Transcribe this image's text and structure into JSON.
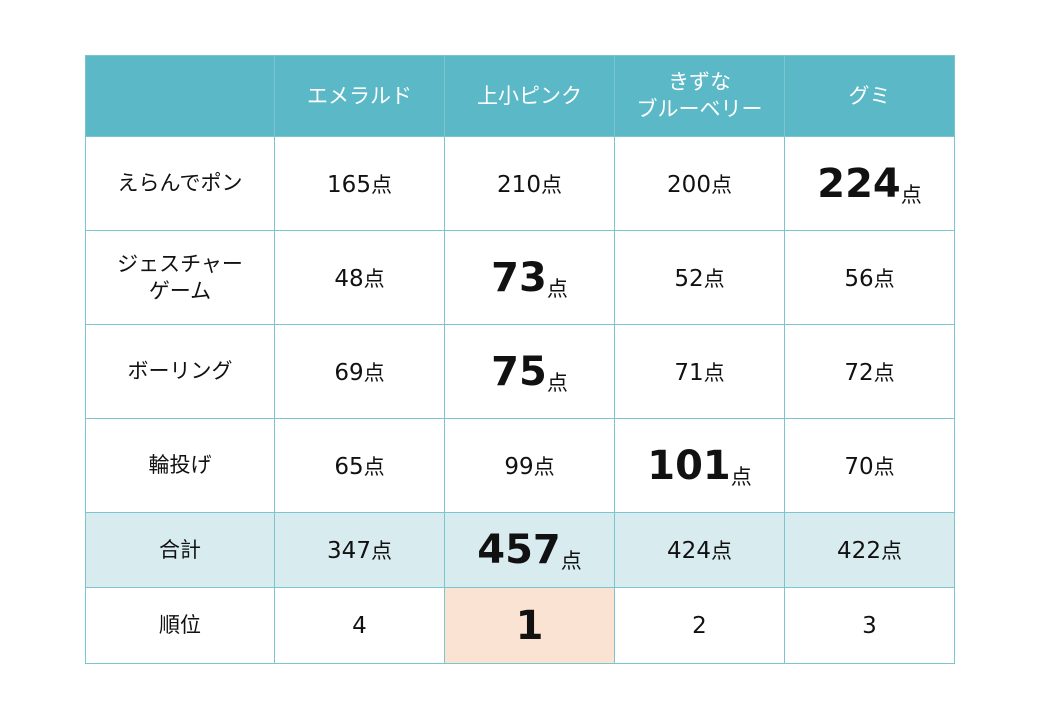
{
  "header": {
    "corner": "",
    "teams": [
      "エメラルド",
      "上小ピンク",
      "きずな\nブルーベリー",
      "グミ"
    ]
  },
  "unit": "点",
  "rows": [
    {
      "label": "えらんでポン",
      "values": [
        "165",
        "210",
        "200",
        "224"
      ],
      "highlight_index": 3
    },
    {
      "label": "ジェスチャー\nゲーム",
      "values": [
        "48",
        "73",
        "52",
        "56"
      ],
      "highlight_index": 1
    },
    {
      "label": "ボーリング",
      "values": [
        "69",
        "75",
        "71",
        "72"
      ],
      "highlight_index": 1
    },
    {
      "label": "輪投げ",
      "values": [
        "65",
        "99",
        "101",
        "70"
      ],
      "highlight_index": 2
    }
  ],
  "total": {
    "label": "合計",
    "values": [
      "347",
      "457",
      "424",
      "422"
    ],
    "highlight_index": 1
  },
  "rank": {
    "label": "順位",
    "values": [
      "4",
      "1",
      "2",
      "3"
    ],
    "highlight_index": 1
  },
  "colors": {
    "header_bg": "#5bb8c6",
    "border": "#7cc4cf",
    "total_bg": "#d8ecf0",
    "winner_bg": "#fbe3d3"
  }
}
